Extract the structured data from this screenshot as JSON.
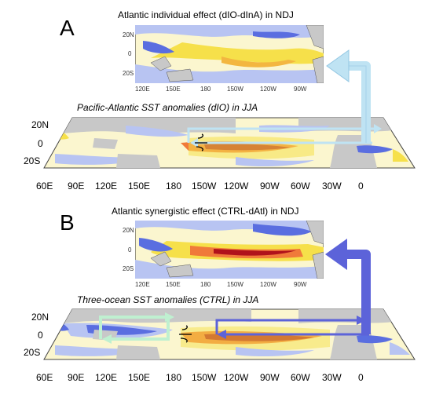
{
  "panel_a": {
    "letter": "A",
    "top_title": "Atlantic individual effect (dIO-dInA) in NDJ",
    "top_lat_ticks": [
      "20N",
      "0",
      "20S"
    ],
    "top_lon_ticks": [
      "120E",
      "150E",
      "180",
      "150W",
      "120W",
      "90W"
    ],
    "bottom_title": "Pacific-Atlantic SST anomalies (dIO) in JJA",
    "bottom_lat_ticks": [
      "20N",
      "0",
      "20S"
    ],
    "bottom_lon_ticks": [
      "60E",
      "90E",
      "120E",
      "150E",
      "180",
      "150W",
      "120W",
      "90W",
      "60W",
      "30W",
      "0"
    ]
  },
  "panel_b": {
    "letter": "B",
    "top_title": "Atlantic synergistic effect (CTRL-dAtl) in NDJ",
    "top_lat_ticks": [
      "20N",
      "0",
      "20S"
    ],
    "top_lon_ticks": [
      "120E",
      "150E",
      "180",
      "150W",
      "120W",
      "90W"
    ],
    "bottom_title": "Three-ocean SST anomalies (CTRL) in JJA",
    "bottom_lat_ticks": [
      "20N",
      "0",
      "20S"
    ],
    "bottom_lon_ticks": [
      "60E",
      "90E",
      "120E",
      "150E",
      "180",
      "150W",
      "120W",
      "90W",
      "60W",
      "30W",
      "0"
    ]
  },
  "colors": {
    "warm_dark": "#b0121b",
    "warm": "#f07a3a",
    "warm_light": "#f6e04a",
    "cool_light": "#b8c4f2",
    "cool": "#5a6ee0",
    "land": "#c8c8c8",
    "arrow_a": "#bfe3f3",
    "arrow_b": "#5c63d9",
    "walker_indian": "#bff0d0"
  }
}
